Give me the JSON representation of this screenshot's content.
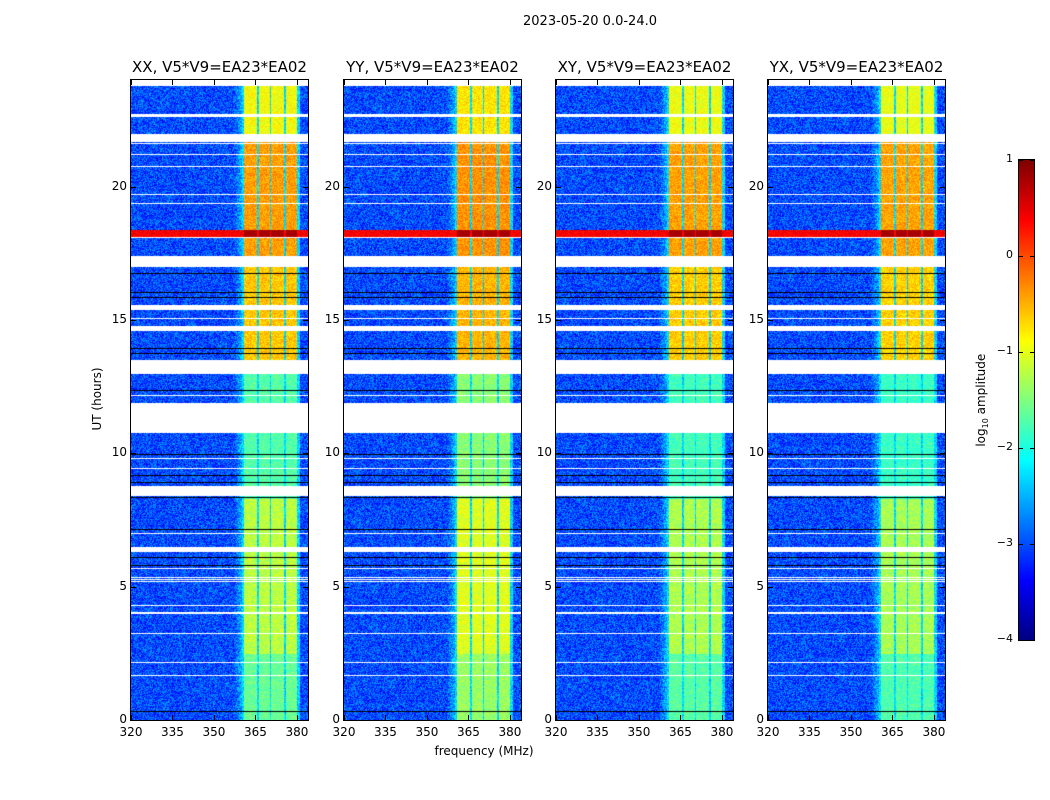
{
  "chart_data": {
    "type": "heatmap",
    "title": "2023-05-20 0.0-24.0",
    "xlabel": "frequency (MHz)",
    "ylabel": "UT (hours)",
    "xlim": [
      320,
      384
    ],
    "ylim": [
      0,
      24
    ],
    "xticks": [
      "320",
      "335",
      "350",
      "365",
      "380"
    ],
    "xtick_values": [
      320,
      335,
      350,
      365,
      380
    ],
    "yticks": [
      "0",
      "5",
      "10",
      "15",
      "20"
    ],
    "ytick_values": [
      0,
      5,
      10,
      15,
      20
    ],
    "panels": [
      {
        "title": "XX, V5*V9=EA23*EA02",
        "band_gain": 1.0
      },
      {
        "title": "YY, V5*V9=EA23*EA02",
        "band_gain": 1.15
      },
      {
        "title": "XY, V5*V9=EA23*EA02",
        "band_gain": 0.95
      },
      {
        "title": "YX, V5*V9=EA23*EA02",
        "band_gain": 0.92
      }
    ],
    "background_log_amplitude": -3.0,
    "bright_subbands_mhz": [
      [
        360.5,
        365.2
      ],
      [
        366.0,
        369.9
      ],
      [
        370.6,
        375.0
      ],
      [
        375.7,
        380.0
      ]
    ],
    "band_log_amplitude_by_hour": [
      {
        "from": 0,
        "to": 2.5,
        "value": -1.6
      },
      {
        "from": 2.5,
        "to": 8.3,
        "value": -1.2
      },
      {
        "from": 8.3,
        "to": 13.0,
        "value": -1.7
      },
      {
        "from": 13.0,
        "to": 17.0,
        "value": -0.6
      },
      {
        "from": 17.0,
        "to": 21.7,
        "value": -0.4
      },
      {
        "from": 21.7,
        "to": 24,
        "value": -0.9
      }
    ],
    "rfi_line": {
      "hour_from": 18.1,
      "hour_to": 18.4,
      "value": 0.6
    },
    "flagged_hours": [
      [
        4.0,
        4.08
      ],
      [
        6.3,
        6.5
      ],
      [
        8.4,
        8.8
      ],
      [
        10.8,
        11.9
      ],
      [
        13.0,
        13.5
      ],
      [
        14.6,
        14.8
      ],
      [
        15.4,
        15.6
      ],
      [
        17.0,
        17.4
      ],
      [
        21.7,
        22.0
      ],
      [
        22.65,
        22.75
      ],
      [
        23.8,
        24.0
      ]
    ],
    "colorbar": {
      "cmap": "jet",
      "range": [
        -4,
        1
      ],
      "ticks": [
        "1",
        "0",
        "−1",
        "−2",
        "−3",
        "−4"
      ],
      "tick_values": [
        1,
        0,
        -1,
        -2,
        -3,
        -4
      ],
      "label_main": "log",
      "label_sub": "10",
      "label_rest": " amplitude"
    }
  }
}
